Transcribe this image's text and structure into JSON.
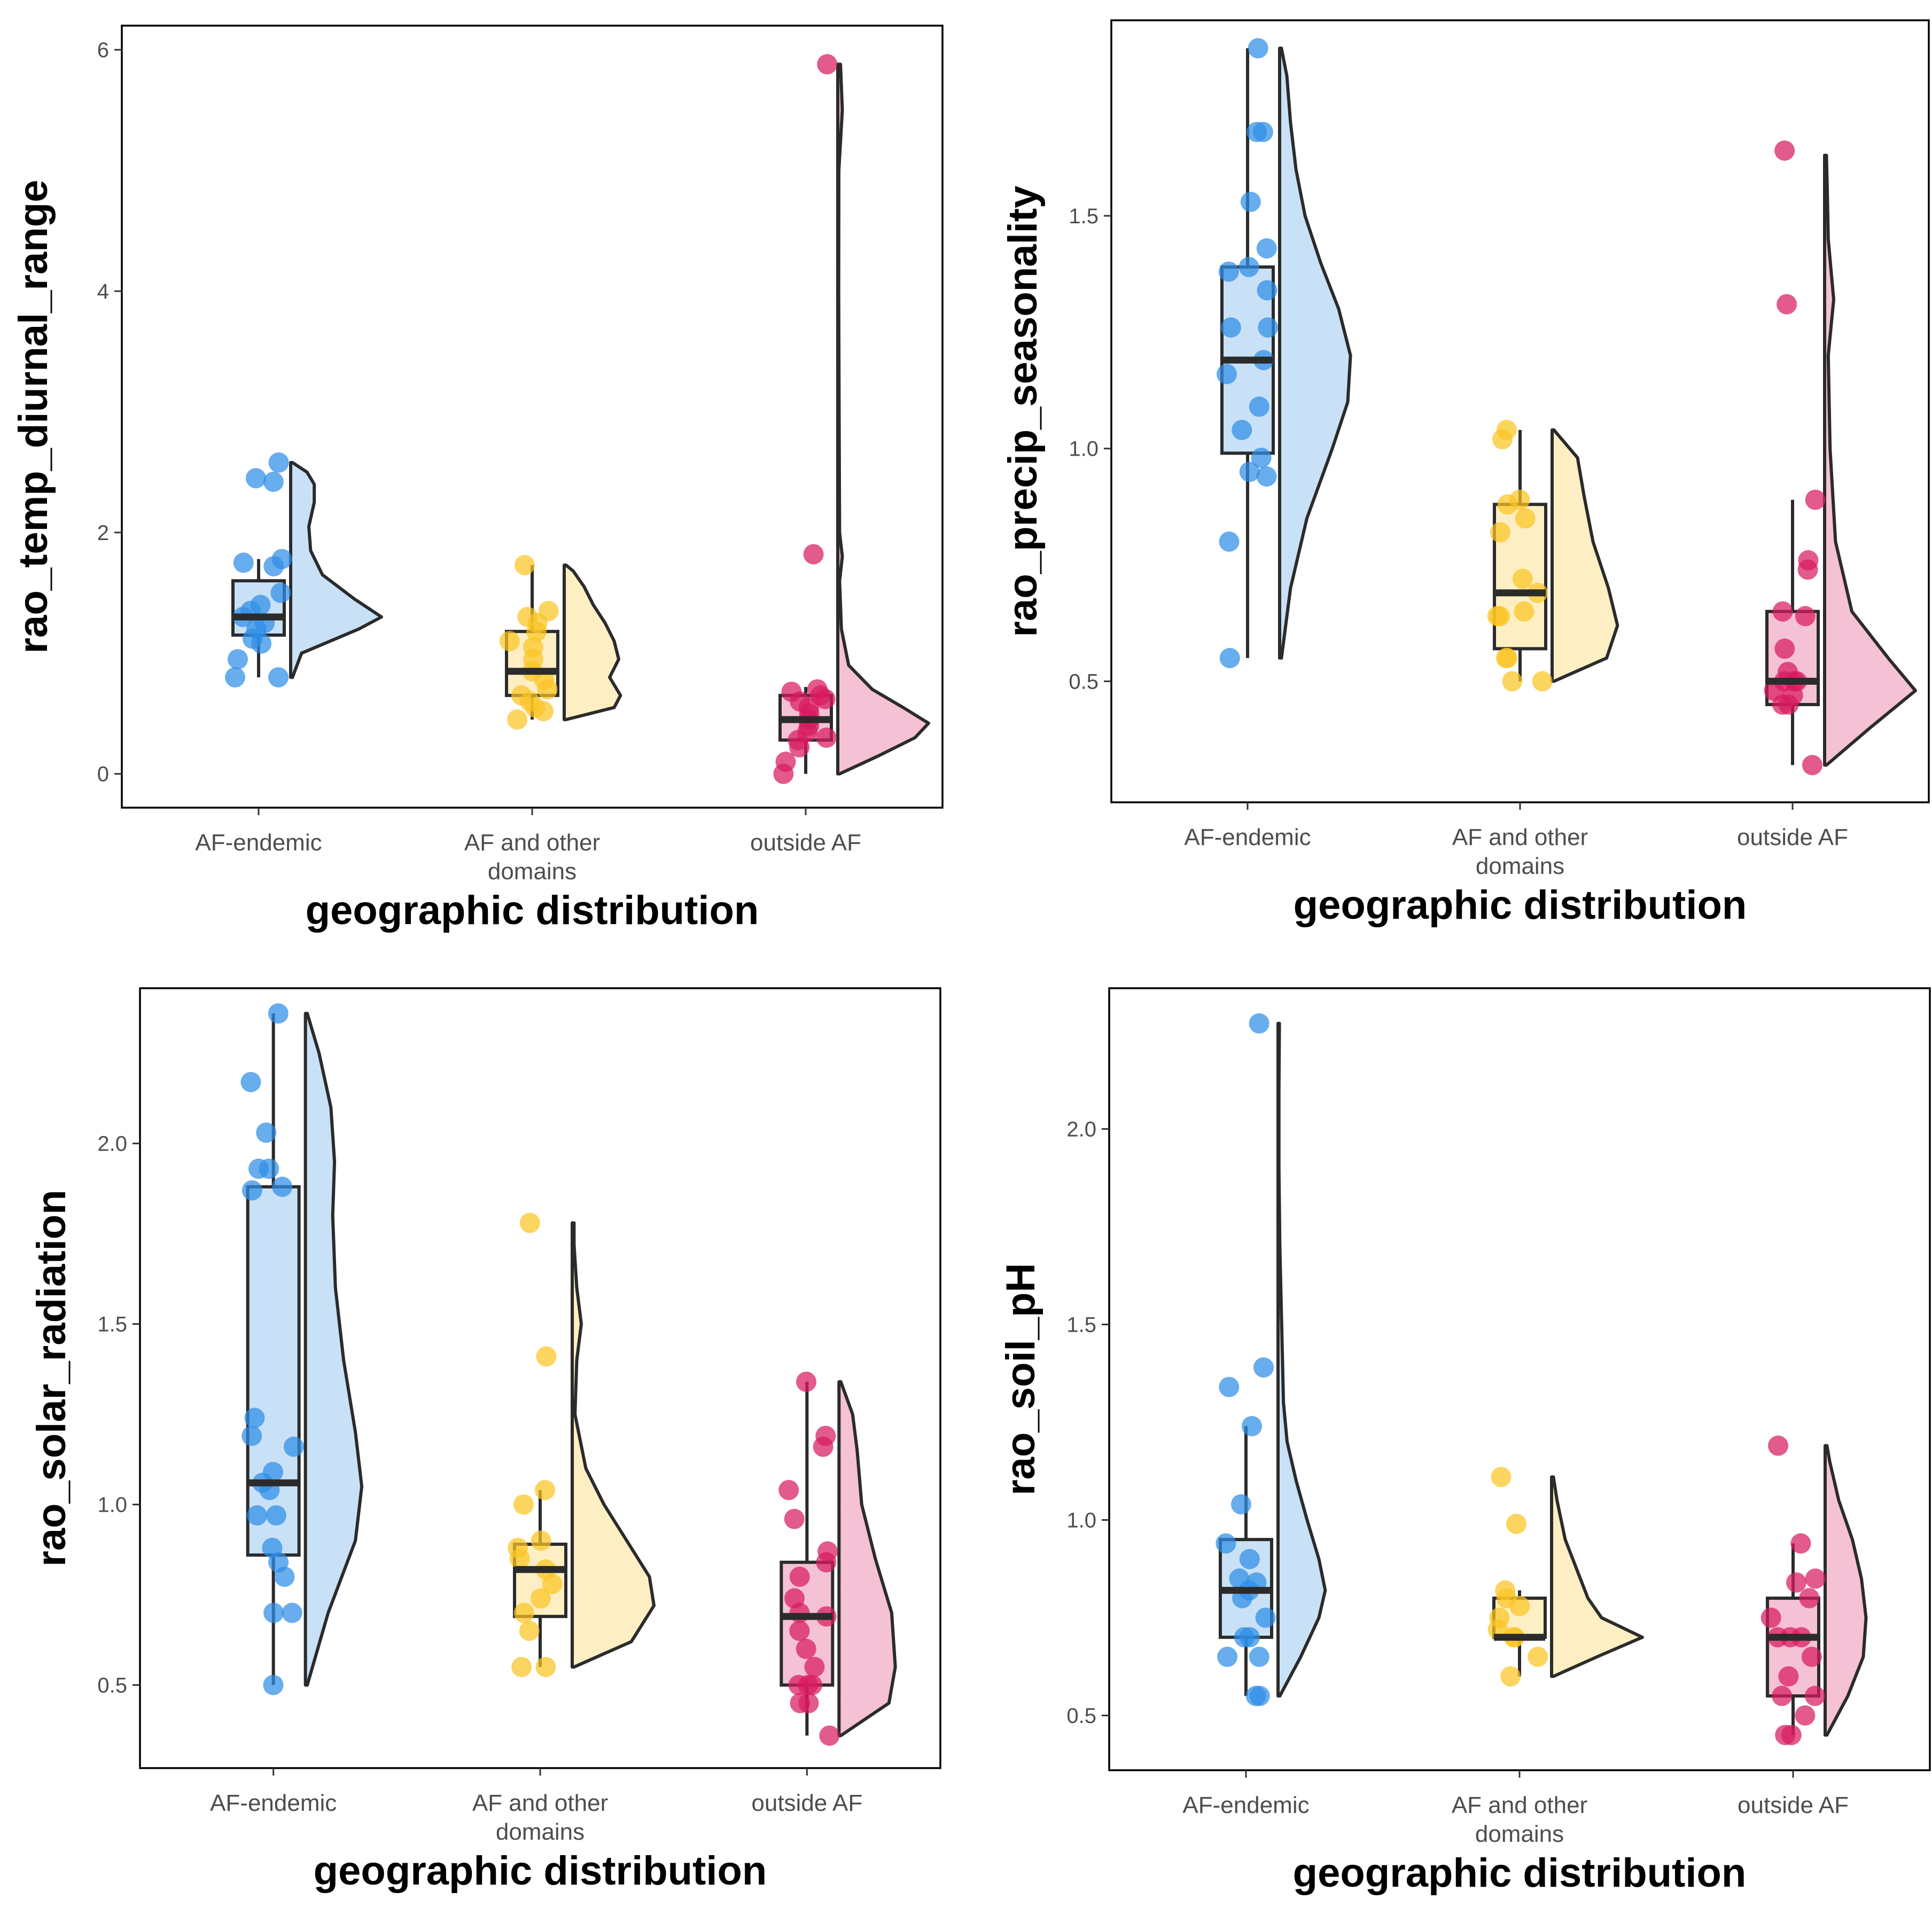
{
  "colors": {
    "af_endemic_point": "#2e8ee6",
    "af_endemic_fill": "#c9e1f7",
    "af_other_point": "#fbc524",
    "af_other_fill": "#fdefc3",
    "outside_point": "#d81b60",
    "outside_fill": "#f4c2d4",
    "outline": "#2b2b2b"
  },
  "chart_data": [
    {
      "type": "raincloud",
      "xlabel": "geographic distribution",
      "ylabel": "rao_temp_diurnal_range",
      "ylim": [
        -0.28,
        6.2
      ],
      "yticks": [
        0,
        2,
        4,
        6
      ],
      "ytick_labels": [
        "0",
        "2",
        "4",
        "6"
      ],
      "categories": [
        {
          "label": [
            "AF-endemic"
          ],
          "box": {
            "min": 0.8,
            "q1": 1.15,
            "median": 1.3,
            "q3": 1.6,
            "max": 1.78
          },
          "violin": [
            [
              0.8,
              0.02
            ],
            [
              1.0,
              0.12
            ],
            [
              1.2,
              0.75
            ],
            [
              1.3,
              1.0
            ],
            [
              1.45,
              0.7
            ],
            [
              1.65,
              0.35
            ],
            [
              1.85,
              0.22
            ],
            [
              2.05,
              0.2
            ],
            [
              2.25,
              0.26
            ],
            [
              2.4,
              0.26
            ],
            [
              2.5,
              0.18
            ],
            [
              2.58,
              0.02
            ]
          ],
          "points": [
            0.8,
            0.8,
            0.95,
            1.08,
            1.12,
            1.2,
            1.25,
            1.3,
            1.35,
            1.4,
            1.5,
            1.72,
            1.75,
            1.78,
            2.42,
            2.45,
            2.58
          ]
        },
        {
          "label": [
            "AF and other",
            "domains"
          ],
          "box": {
            "min": 0.45,
            "q1": 0.65,
            "median": 0.85,
            "q3": 1.18,
            "max": 1.73
          },
          "violin": [
            [
              0.45,
              0.02
            ],
            [
              0.55,
              0.55
            ],
            [
              0.65,
              0.62
            ],
            [
              0.8,
              0.5
            ],
            [
              0.95,
              0.6
            ],
            [
              1.1,
              0.55
            ],
            [
              1.25,
              0.45
            ],
            [
              1.4,
              0.32
            ],
            [
              1.55,
              0.22
            ],
            [
              1.68,
              0.1
            ],
            [
              1.73,
              0.02
            ]
          ],
          "points": [
            0.45,
            0.52,
            0.55,
            0.6,
            0.65,
            0.7,
            0.78,
            0.85,
            0.95,
            1.05,
            1.1,
            1.18,
            1.25,
            1.3,
            1.35,
            1.73
          ]
        },
        {
          "label": [
            "outside AF"
          ],
          "box": {
            "min": 0.0,
            "q1": 0.28,
            "median": 0.45,
            "q3": 0.65,
            "max": 0.72
          },
          "violin": [
            [
              0.0,
              0.02
            ],
            [
              0.15,
              0.45
            ],
            [
              0.3,
              0.85
            ],
            [
              0.42,
              1.0
            ],
            [
              0.55,
              0.72
            ],
            [
              0.7,
              0.38
            ],
            [
              0.9,
              0.12
            ],
            [
              1.2,
              0.04
            ],
            [
              1.6,
              0.02
            ],
            [
              1.8,
              0.05
            ],
            [
              2.0,
              0.02
            ],
            [
              3.0,
              0.015
            ],
            [
              4.0,
              0.01
            ],
            [
              5.0,
              0.012
            ],
            [
              5.5,
              0.05
            ],
            [
              5.88,
              0.03
            ]
          ],
          "points": [
            0.0,
            0.1,
            0.22,
            0.28,
            0.3,
            0.35,
            0.4,
            0.45,
            0.5,
            0.55,
            0.6,
            0.62,
            0.65,
            0.68,
            0.7,
            1.82,
            5.88
          ]
        }
      ]
    },
    {
      "type": "raincloud",
      "xlabel": "geographic distribution",
      "ylabel": "rao_precip_seasonality",
      "ylim": [
        0.24,
        1.92
      ],
      "yticks": [
        0.5,
        1.0,
        1.5
      ],
      "ytick_labels": [
        "0.5",
        "1.0",
        "1.5"
      ],
      "categories": [
        {
          "label": [
            "AF-endemic"
          ],
          "box": {
            "min": 0.55,
            "q1": 0.99,
            "median": 1.19,
            "q3": 1.39,
            "max": 1.86
          },
          "violin": [
            [
              0.55,
              0.02
            ],
            [
              0.7,
              0.12
            ],
            [
              0.85,
              0.3
            ],
            [
              1.0,
              0.58
            ],
            [
              1.1,
              0.75
            ],
            [
              1.2,
              0.78
            ],
            [
              1.3,
              0.65
            ],
            [
              1.4,
              0.45
            ],
            [
              1.5,
              0.28
            ],
            [
              1.6,
              0.18
            ],
            [
              1.7,
              0.12
            ],
            [
              1.8,
              0.08
            ],
            [
              1.86,
              0.02
            ]
          ],
          "points": [
            0.55,
            0.8,
            0.94,
            0.95,
            0.98,
            1.04,
            1.09,
            1.16,
            1.19,
            1.26,
            1.26,
            1.34,
            1.38,
            1.39,
            1.43,
            1.53,
            1.68,
            1.68,
            1.86
          ]
        },
        {
          "label": [
            "AF and other",
            "domains"
          ],
          "box": {
            "min": 0.5,
            "q1": 0.57,
            "median": 0.69,
            "q3": 0.88,
            "max": 1.04
          },
          "violin": [
            [
              0.5,
              0.02
            ],
            [
              0.55,
              0.6
            ],
            [
              0.62,
              0.72
            ],
            [
              0.7,
              0.62
            ],
            [
              0.8,
              0.45
            ],
            [
              0.9,
              0.35
            ],
            [
              0.98,
              0.28
            ],
            [
              1.04,
              0.02
            ]
          ],
          "points": [
            0.5,
            0.5,
            0.55,
            0.55,
            0.64,
            0.64,
            0.65,
            0.69,
            0.72,
            0.82,
            0.85,
            0.88,
            0.89,
            1.02,
            1.04
          ]
        },
        {
          "label": [
            "outside AF"
          ],
          "box": {
            "min": 0.32,
            "q1": 0.45,
            "median": 0.5,
            "q3": 0.65,
            "max": 0.89
          },
          "violin": [
            [
              0.32,
              0.02
            ],
            [
              0.4,
              0.5
            ],
            [
              0.48,
              1.0
            ],
            [
              0.55,
              0.7
            ],
            [
              0.65,
              0.3
            ],
            [
              0.8,
              0.12
            ],
            [
              1.0,
              0.06
            ],
            [
              1.2,
              0.04
            ],
            [
              1.32,
              0.1
            ],
            [
              1.45,
              0.04
            ],
            [
              1.55,
              0.03
            ],
            [
              1.63,
              0.02
            ]
          ],
          "points": [
            0.32,
            0.45,
            0.45,
            0.47,
            0.48,
            0.5,
            0.5,
            0.5,
            0.52,
            0.57,
            0.64,
            0.65,
            0.74,
            0.76,
            0.89,
            1.31,
            1.64
          ]
        }
      ]
    },
    {
      "type": "raincloud",
      "xlabel": "geographic distribution",
      "ylabel": "rao_solar_radiation",
      "ylim": [
        0.27,
        2.43
      ],
      "yticks": [
        0.5,
        1.0,
        1.5,
        2.0
      ],
      "ytick_labels": [
        "0.5",
        "1.0",
        "1.5",
        "2.0"
      ],
      "categories": [
        {
          "label": [
            "AF-endemic"
          ],
          "box": {
            "min": 0.5,
            "q1": 0.86,
            "median": 1.06,
            "q3": 1.88,
            "max": 2.36
          },
          "violin": [
            [
              0.5,
              0.02
            ],
            [
              0.7,
              0.25
            ],
            [
              0.9,
              0.55
            ],
            [
              1.05,
              0.62
            ],
            [
              1.2,
              0.55
            ],
            [
              1.4,
              0.42
            ],
            [
              1.6,
              0.33
            ],
            [
              1.8,
              0.3
            ],
            [
              1.95,
              0.32
            ],
            [
              2.1,
              0.28
            ],
            [
              2.25,
              0.15
            ],
            [
              2.36,
              0.02
            ]
          ],
          "points": [
            0.5,
            0.7,
            0.7,
            0.8,
            0.84,
            0.88,
            0.97,
            0.97,
            1.04,
            1.06,
            1.09,
            1.16,
            1.19,
            1.24,
            1.87,
            1.88,
            1.93,
            1.93,
            2.03,
            2.17,
            2.36
          ]
        },
        {
          "label": [
            "AF and other",
            "domains"
          ],
          "box": {
            "min": 0.55,
            "q1": 0.69,
            "median": 0.82,
            "q3": 0.89,
            "max": 1.04
          },
          "violin": [
            [
              0.55,
              0.02
            ],
            [
              0.62,
              0.65
            ],
            [
              0.72,
              0.9
            ],
            [
              0.8,
              0.85
            ],
            [
              0.9,
              0.6
            ],
            [
              1.0,
              0.35
            ],
            [
              1.1,
              0.15
            ],
            [
              1.25,
              0.03
            ],
            [
              1.4,
              0.05
            ],
            [
              1.5,
              0.1
            ],
            [
              1.6,
              0.05
            ],
            [
              1.72,
              0.02
            ],
            [
              1.78,
              0.02
            ]
          ],
          "points": [
            0.55,
            0.55,
            0.65,
            0.7,
            0.74,
            0.78,
            0.82,
            0.85,
            0.88,
            0.9,
            1.0,
            1.04,
            1.41,
            1.78
          ]
        },
        {
          "label": [
            "outside AF"
          ],
          "box": {
            "min": 0.36,
            "q1": 0.5,
            "median": 0.69,
            "q3": 0.84,
            "max": 1.34
          },
          "violin": [
            [
              0.36,
              0.02
            ],
            [
              0.45,
              0.55
            ],
            [
              0.55,
              0.62
            ],
            [
              0.7,
              0.58
            ],
            [
              0.85,
              0.4
            ],
            [
              1.0,
              0.25
            ],
            [
              1.15,
              0.2
            ],
            [
              1.25,
              0.15
            ],
            [
              1.34,
              0.02
            ]
          ],
          "points": [
            0.36,
            0.45,
            0.45,
            0.5,
            0.5,
            0.5,
            0.55,
            0.6,
            0.65,
            0.69,
            0.7,
            0.74,
            0.8,
            0.84,
            0.87,
            0.96,
            1.04,
            1.16,
            1.19,
            1.34
          ]
        }
      ]
    },
    {
      "type": "raincloud",
      "xlabel": "geographic distribution",
      "ylabel": "rao_soil_pH",
      "ylim": [
        0.36,
        2.36
      ],
      "yticks": [
        0.5,
        1.0,
        1.5,
        2.0
      ],
      "ytick_labels": [
        "0.5",
        "1.0",
        "1.5",
        "2.0"
      ],
      "categories": [
        {
          "label": [
            "AF-endemic"
          ],
          "box": {
            "min": 0.55,
            "q1": 0.7,
            "median": 0.82,
            "q3": 0.95,
            "max": 1.24
          },
          "violin": [
            [
              0.55,
              0.02
            ],
            [
              0.65,
              0.25
            ],
            [
              0.75,
              0.45
            ],
            [
              0.82,
              0.52
            ],
            [
              0.9,
              0.45
            ],
            [
              1.0,
              0.32
            ],
            [
              1.1,
              0.2
            ],
            [
              1.2,
              0.1
            ],
            [
              1.3,
              0.06
            ],
            [
              1.4,
              0.05
            ],
            [
              1.5,
              0.04
            ],
            [
              1.7,
              0.02
            ],
            [
              1.9,
              0.01
            ],
            [
              2.1,
              0.01
            ],
            [
              2.27,
              0.015
            ]
          ],
          "points": [
            0.55,
            0.55,
            0.65,
            0.65,
            0.7,
            0.7,
            0.75,
            0.8,
            0.82,
            0.84,
            0.85,
            0.9,
            0.94,
            1.04,
            1.24,
            1.34,
            1.39,
            2.27
          ]
        },
        {
          "label": [
            "AF and other",
            "domains"
          ],
          "box": {
            "min": 0.6,
            "q1": 0.7,
            "median": 0.7,
            "q3": 0.8,
            "max": 0.82
          },
          "violin": [
            [
              0.6,
              0.02
            ],
            [
              0.65,
              0.5
            ],
            [
              0.7,
              1.0
            ],
            [
              0.75,
              0.55
            ],
            [
              0.8,
              0.4
            ],
            [
              0.86,
              0.3
            ],
            [
              0.95,
              0.15
            ],
            [
              1.05,
              0.06
            ],
            [
              1.11,
              0.02
            ]
          ],
          "points": [
            0.6,
            0.65,
            0.7,
            0.7,
            0.72,
            0.75,
            0.78,
            0.8,
            0.82,
            0.99,
            1.11
          ]
        },
        {
          "label": [
            "outside AF"
          ],
          "box": {
            "min": 0.45,
            "q1": 0.55,
            "median": 0.7,
            "q3": 0.8,
            "max": 0.94
          },
          "violin": [
            [
              0.45,
              0.02
            ],
            [
              0.55,
              0.25
            ],
            [
              0.65,
              0.42
            ],
            [
              0.75,
              0.45
            ],
            [
              0.85,
              0.4
            ],
            [
              0.95,
              0.3
            ],
            [
              1.05,
              0.15
            ],
            [
              1.15,
              0.05
            ],
            [
              1.19,
              0.02
            ]
          ],
          "points": [
            0.45,
            0.45,
            0.5,
            0.55,
            0.55,
            0.6,
            0.65,
            0.7,
            0.7,
            0.7,
            0.75,
            0.8,
            0.84,
            0.85,
            0.94,
            1.19
          ]
        }
      ]
    }
  ]
}
